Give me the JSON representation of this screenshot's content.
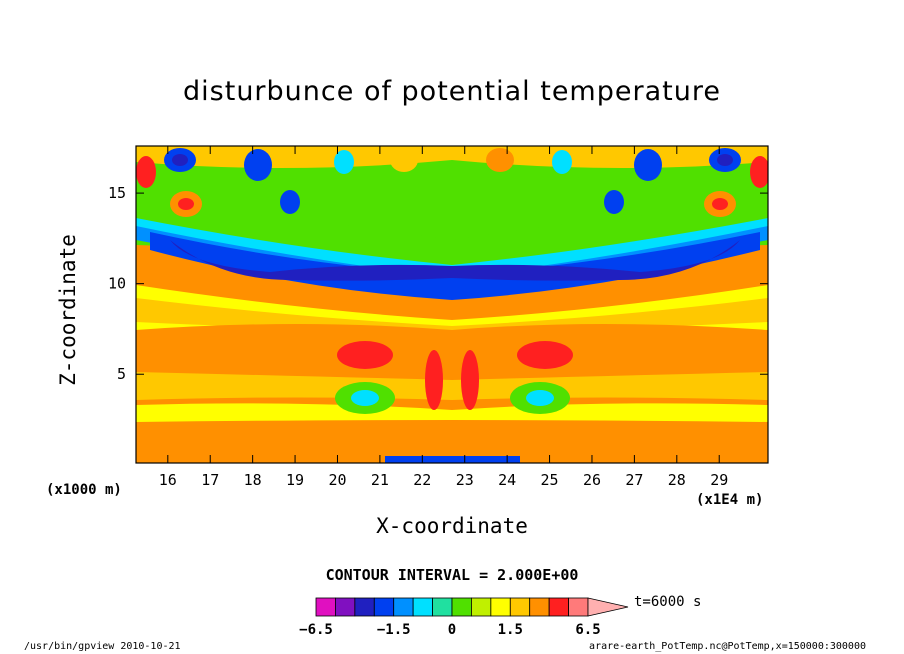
{
  "chart_data": {
    "type": "heatmap",
    "title": "disturbunce of potential temperature",
    "xlabel": "X-coordinate",
    "ylabel": "Z-coordinate",
    "x_unit_left": "(x1000 m)",
    "x_unit_right": "(x1E4 m)",
    "x_ticks": [
      16,
      17,
      18,
      19,
      20,
      21,
      22,
      23,
      24,
      25,
      26,
      27,
      28,
      29
    ],
    "y_ticks": [
      5,
      10,
      15
    ],
    "xlim": [
      15.25,
      30.15
    ],
    "ylim": [
      0.1,
      17.6
    ],
    "contour_interval": "CONTOUR INTERVAL = 2.000E+00",
    "time_label": "t=6000 s",
    "colorbar": {
      "labels": [
        {
          "text": "−6.5",
          "value": -6.5
        },
        {
          "text": "−1.5",
          "value": -1.5
        },
        {
          "text": "0",
          "value": 0
        },
        {
          "text": "1.5",
          "value": 1.5
        },
        {
          "text": "6.5",
          "value": 6.5
        }
      ],
      "levels": [
        -6.5,
        -5,
        -3.5,
        -2,
        -1.5,
        -1,
        -0.5,
        0,
        0.5,
        1,
        1.5,
        2,
        3.5,
        5,
        6.5,
        8
      ],
      "colors": [
        "#e010c0",
        "#8010c0",
        "#2020c0",
        "#0040f0",
        "#0090ff",
        "#00e0ff",
        "#20e0a0",
        "#50e000",
        "#c0f000",
        "#ffff00",
        "#ffc800",
        "#ff9000",
        "#ff2020",
        "#ff7a7a",
        "#ffb0b0"
      ]
    }
  },
  "footer": {
    "left": "/usr/bin/gpview  2010-10-21",
    "right": "arare-earth_PotTemp.nc@PotTemp,x=150000:300000"
  }
}
